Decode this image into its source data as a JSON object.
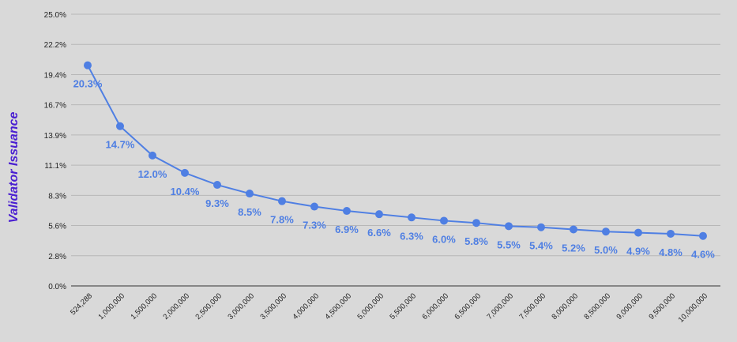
{
  "chart_data": {
    "type": "line",
    "ylabel": "Validator Issuance",
    "xlabel": "",
    "ylim": [
      0,
      25.0
    ],
    "y_ticks": [
      "0.0%",
      "2.8%",
      "5.6%",
      "8.3%",
      "11.1%",
      "13.9%",
      "16.7%",
      "19.4%",
      "22.2%",
      "25.0%"
    ],
    "categories": [
      "524,288",
      "1,000,000",
      "1,500,000",
      "2,000,000",
      "2,500,000",
      "3,000,000",
      "3,500,000",
      "4,000,000",
      "4,500,000",
      "5,000,000",
      "5,500,000",
      "6,000,000",
      "6,500,000",
      "7,000,000",
      "7,500,000",
      "8,000,000",
      "8,500,000",
      "9,000,000",
      "9,500,000",
      "10,000,000"
    ],
    "values": [
      20.3,
      14.7,
      12.0,
      10.4,
      9.3,
      8.5,
      7.8,
      7.3,
      6.9,
      6.6,
      6.3,
      6.0,
      5.8,
      5.5,
      5.4,
      5.2,
      5.0,
      4.9,
      4.8,
      4.6
    ],
    "data_labels": [
      "20.3%",
      "14.7%",
      "12.0%",
      "10.4%",
      "9.3%",
      "8.5%",
      "7.8%",
      "7.3%",
      "6.9%",
      "6.6%",
      "6.3%",
      "6.0%",
      "5.8%",
      "5.5%",
      "5.4%",
      "5.2%",
      "5.0%",
      "4.9%",
      "4.8%",
      "4.6%"
    ],
    "grid": true,
    "colors": {
      "series": "#4f7fe3",
      "ylabel": "#4a1fd1",
      "background": "#d9d9d9",
      "grid": "#b7b7b7"
    }
  }
}
